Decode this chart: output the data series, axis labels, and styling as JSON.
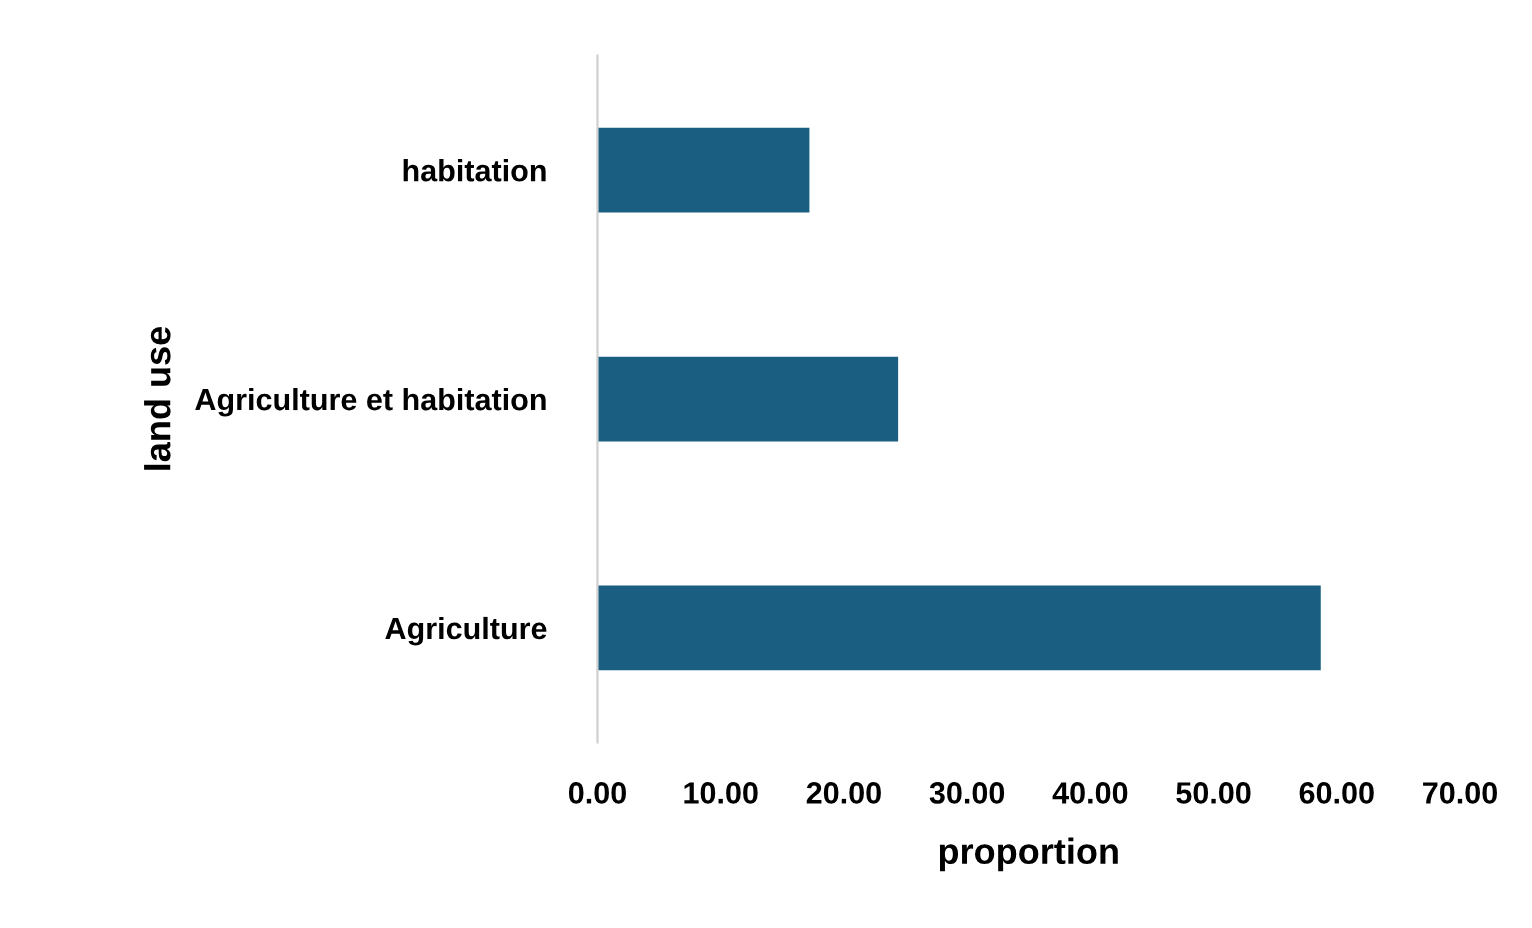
{
  "chart_data": {
    "type": "bar",
    "orientation": "horizontal",
    "xlabel": "proportion",
    "ylabel": "land use",
    "categories": [
      "habitation",
      "Agriculture et habitation",
      "Agriculture"
    ],
    "values": [
      17.2,
      24.4,
      58.7
    ],
    "color": "#1a5f82",
    "xlim": [
      0,
      70
    ],
    "xticks": [
      {
        "value": 0,
        "label": "0.00"
      },
      {
        "value": 10,
        "label": "10.00"
      },
      {
        "value": 20,
        "label": "20.00"
      },
      {
        "value": 30,
        "label": "30.00"
      },
      {
        "value": 40,
        "label": "40.00"
      },
      {
        "value": 50,
        "label": "50.00"
      },
      {
        "value": 60,
        "label": "60.00"
      },
      {
        "value": 70,
        "label": "70.00"
      }
    ],
    "grid": false
  }
}
